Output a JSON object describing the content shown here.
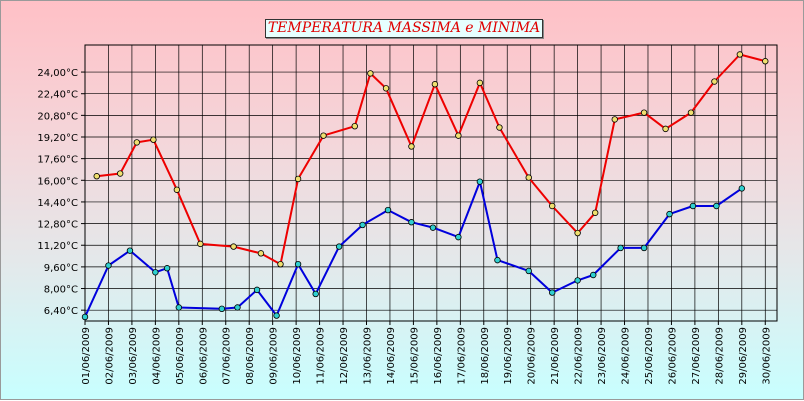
{
  "chart_data": {
    "type": "line",
    "title": "TEMPERATURA MASSIMA e MINIMA",
    "xlabel": "",
    "ylabel": "",
    "grid": true,
    "ylim": [
      5.6,
      26.0
    ],
    "y_ticks": [
      6.4,
      8.0,
      9.6,
      11.2,
      12.8,
      14.4,
      16.0,
      17.6,
      19.2,
      20.8,
      22.4,
      24.0
    ],
    "y_tick_labels": [
      "6,40°C",
      "8,00°C",
      "9,60°C",
      "11,20°C",
      "12,80°C",
      "14,40°C",
      "16,00°C",
      "17,60°C",
      "19,20°C",
      "20,80°C",
      "22,40°C",
      "24,00°C"
    ],
    "x_ticks": [
      "2009-06-01",
      "2009-06-02",
      "2009-06-03",
      "2009-06-04",
      "2009-06-05",
      "2009-06-06",
      "2009-06-07",
      "2009-06-08",
      "2009-06-09",
      "2009-06-10",
      "2009-06-11",
      "2009-06-12",
      "2009-06-13",
      "2009-06-14",
      "2009-06-15",
      "2009-06-16",
      "2009-06-17",
      "2009-06-18",
      "2009-06-19",
      "2009-06-20",
      "2009-06-21",
      "2009-06-22",
      "2009-06-23",
      "2009-06-24",
      "2009-06-25",
      "2009-06-26",
      "2009-06-27",
      "2009-06-28",
      "2009-06-29",
      "2009-06-30"
    ],
    "x_tick_labels": [
      "01/06/2009",
      "02/06/2009",
      "03/06/2009",
      "04/06/2009",
      "05/06/2009",
      "06/06/2009",
      "07/06/2009",
      "08/06/2009",
      "09/06/2009",
      "10/06/2009",
      "11/06/2009",
      "12/06/2009",
      "13/06/2009",
      "14/06/2009",
      "15/06/2009",
      "16/06/2009",
      "17/06/2009",
      "18/06/2009",
      "19/06/2009",
      "20/06/2009",
      "21/06/2009",
      "22/06/2009",
      "23/06/2009",
      "24/06/2009",
      "25/06/2009",
      "26/06/2009",
      "27/06/2009",
      "28/06/2009",
      "29/06/2009",
      "30/06/2009"
    ],
    "xlim": [
      "2009-06-01",
      "2009-06-30T12:00"
    ],
    "series": [
      {
        "color": "#ee0000",
        "marker_fill": "#f0e070",
        "points": [
          [
            "2009-06-01T12:00",
            16.3
          ],
          [
            "2009-06-02T12:00",
            16.5
          ],
          [
            "2009-06-03T05:00",
            18.8
          ],
          [
            "2009-06-03T22:00",
            19.0
          ],
          [
            "2009-06-04T22:00",
            15.3
          ],
          [
            "2009-06-05T22:00",
            11.3
          ],
          [
            "2009-06-07T08:00",
            11.1
          ],
          [
            "2009-06-08T12:00",
            10.6
          ],
          [
            "2009-06-09T08:00",
            9.8
          ],
          [
            "2009-06-10T02:00",
            16.1
          ],
          [
            "2009-06-11T04:00",
            19.3
          ],
          [
            "2009-06-12T12:00",
            20.0
          ],
          [
            "2009-06-13T04:00",
            23.9
          ],
          [
            "2009-06-13T20:00",
            22.8
          ],
          [
            "2009-06-14T22:00",
            18.5
          ],
          [
            "2009-06-15T22:00",
            23.1
          ],
          [
            "2009-06-16T22:00",
            19.3
          ],
          [
            "2009-06-17T20:00",
            23.2
          ],
          [
            "2009-06-18T16:00",
            19.9
          ],
          [
            "2009-06-19T22:00",
            16.2
          ],
          [
            "2009-06-20T22:00",
            14.1
          ],
          [
            "2009-06-22T00:00",
            12.1
          ],
          [
            "2009-06-22T18:00",
            13.6
          ],
          [
            "2009-06-23T14:00",
            20.5
          ],
          [
            "2009-06-24T20:00",
            21.0
          ],
          [
            "2009-06-25T18:00",
            19.8
          ],
          [
            "2009-06-26T20:00",
            21.0
          ],
          [
            "2009-06-27T20:00",
            23.3
          ],
          [
            "2009-06-28T22:00",
            25.3
          ],
          [
            "2009-06-30T00:00",
            24.8
          ]
        ]
      },
      {
        "color": "#0000dd",
        "marker_fill": "#30d0d0",
        "points": [
          [
            "2009-06-01T00:00",
            5.9
          ],
          [
            "2009-06-02T00:00",
            9.7
          ],
          [
            "2009-06-02T22:00",
            10.8
          ],
          [
            "2009-06-04T00:00",
            9.2
          ],
          [
            "2009-06-04T12:00",
            9.5
          ],
          [
            "2009-06-05T00:00",
            6.6
          ],
          [
            "2009-06-06T20:00",
            6.5
          ],
          [
            "2009-06-07T12:00",
            6.6
          ],
          [
            "2009-06-08T08:00",
            7.9
          ],
          [
            "2009-06-09T04:00",
            6.0
          ],
          [
            "2009-06-10T02:00",
            9.8
          ],
          [
            "2009-06-10T20:00",
            7.6
          ],
          [
            "2009-06-11T20:00",
            11.1
          ],
          [
            "2009-06-12T20:00",
            12.7
          ],
          [
            "2009-06-13T22:00",
            13.8
          ],
          [
            "2009-06-14T22:00",
            12.9
          ],
          [
            "2009-06-15T20:00",
            12.5
          ],
          [
            "2009-06-16T22:00",
            11.8
          ],
          [
            "2009-06-17T20:00",
            15.9
          ],
          [
            "2009-06-18T14:00",
            10.1
          ],
          [
            "2009-06-19T22:00",
            9.3
          ],
          [
            "2009-06-20T22:00",
            7.7
          ],
          [
            "2009-06-22T00:00",
            8.6
          ],
          [
            "2009-06-22T16:00",
            9.0
          ],
          [
            "2009-06-23T20:00",
            11.0
          ],
          [
            "2009-06-24T20:00",
            11.0
          ],
          [
            "2009-06-25T22:00",
            13.5
          ],
          [
            "2009-06-26T22:00",
            14.1
          ],
          [
            "2009-06-27T22:00",
            14.1
          ],
          [
            "2009-06-29T00:00",
            15.4
          ]
        ]
      }
    ]
  }
}
